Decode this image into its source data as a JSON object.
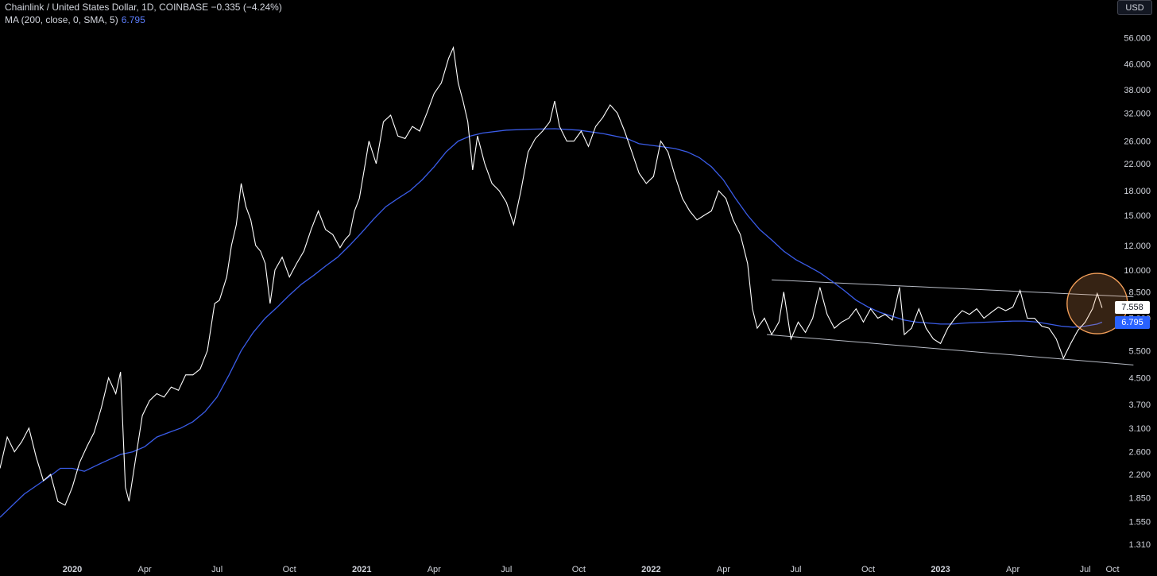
{
  "legend": {
    "line1": "Chainlink / United States Dollar, 1D, COINBASE  −0.335 (−4.24%)",
    "line2_label": "MA (200, close, 0, SMA, 5)",
    "line2_value": "6.795"
  },
  "currency_button": "USD",
  "price_tag": "7.558",
  "ma_tag": "6.795",
  "colors": {
    "price": "#ffffff",
    "ma": "#3a5ce8",
    "channel": "#b8bcc6",
    "highlight": "#f5a05a",
    "background": "#000000"
  },
  "chart_data": {
    "type": "line",
    "yscale": "log",
    "ylim": [
      1.2,
      62
    ],
    "xlim": [
      0,
      46
    ],
    "ytick_labels": [
      "56.000",
      "46.000",
      "38.000",
      "32.000",
      "26.000",
      "22.000",
      "18.000",
      "15.000",
      "12.000",
      "10.000",
      "8.500",
      "7.000",
      "5.500",
      "4.500",
      "3.700",
      "3.100",
      "2.600",
      "2.200",
      "1.850",
      "1.550",
      "1.310"
    ],
    "xticks": [
      {
        "label": "2020",
        "x": 3,
        "year": true
      },
      {
        "label": "Apr",
        "x": 6,
        "year": false
      },
      {
        "label": "Jul",
        "x": 9,
        "year": false
      },
      {
        "label": "Oct",
        "x": 12,
        "year": false
      },
      {
        "label": "2021",
        "x": 15,
        "year": true
      },
      {
        "label": "Apr",
        "x": 18,
        "year": false
      },
      {
        "label": "Jul",
        "x": 21,
        "year": false
      },
      {
        "label": "Oct",
        "x": 24,
        "year": false
      },
      {
        "label": "2022",
        "x": 27,
        "year": true
      },
      {
        "label": "Apr",
        "x": 30,
        "year": false
      },
      {
        "label": "Jul",
        "x": 33,
        "year": false
      },
      {
        "label": "Oct",
        "x": 36,
        "year": false
      },
      {
        "label": "2023",
        "x": 39,
        "year": true
      },
      {
        "label": "Apr",
        "x": 42,
        "year": false
      },
      {
        "label": "Jul",
        "x": 45,
        "year": false
      },
      {
        "label": "Oct",
        "x": 48,
        "year": false
      }
    ],
    "series": [
      {
        "name": "Chainlink / United States Dollar",
        "points": [
          [
            0.0,
            2.3
          ],
          [
            0.3,
            2.9
          ],
          [
            0.6,
            2.6
          ],
          [
            0.9,
            2.8
          ],
          [
            1.2,
            3.1
          ],
          [
            1.5,
            2.5
          ],
          [
            1.8,
            2.1
          ],
          [
            2.1,
            2.2
          ],
          [
            2.4,
            1.8
          ],
          [
            2.7,
            1.75
          ],
          [
            3.0,
            2.0
          ],
          [
            3.3,
            2.4
          ],
          [
            3.6,
            2.7
          ],
          [
            3.9,
            3.0
          ],
          [
            4.2,
            3.6
          ],
          [
            4.5,
            4.5
          ],
          [
            4.8,
            4.0
          ],
          [
            5.0,
            4.7
          ],
          [
            5.2,
            2.0
          ],
          [
            5.35,
            1.8
          ],
          [
            5.6,
            2.4
          ],
          [
            5.9,
            3.4
          ],
          [
            6.2,
            3.8
          ],
          [
            6.5,
            4.0
          ],
          [
            6.8,
            3.9
          ],
          [
            7.1,
            4.2
          ],
          [
            7.4,
            4.1
          ],
          [
            7.7,
            4.6
          ],
          [
            8.0,
            4.6
          ],
          [
            8.3,
            4.8
          ],
          [
            8.6,
            5.5
          ],
          [
            8.9,
            7.8
          ],
          [
            9.1,
            8.0
          ],
          [
            9.4,
            9.5
          ],
          [
            9.6,
            12.0
          ],
          [
            9.8,
            14.0
          ],
          [
            10.0,
            19.0
          ],
          [
            10.2,
            16.0
          ],
          [
            10.4,
            14.5
          ],
          [
            10.6,
            12.0
          ],
          [
            10.8,
            11.5
          ],
          [
            11.0,
            10.5
          ],
          [
            11.2,
            7.8
          ],
          [
            11.4,
            10.0
          ],
          [
            11.7,
            11.0
          ],
          [
            12.0,
            9.5
          ],
          [
            12.3,
            10.5
          ],
          [
            12.6,
            11.5
          ],
          [
            12.9,
            13.5
          ],
          [
            13.2,
            15.5
          ],
          [
            13.5,
            13.5
          ],
          [
            13.8,
            13.0
          ],
          [
            14.1,
            11.8
          ],
          [
            14.3,
            12.5
          ],
          [
            14.5,
            13.0
          ],
          [
            14.7,
            15.5
          ],
          [
            14.9,
            17.0
          ],
          [
            15.1,
            21.0
          ],
          [
            15.3,
            26.0
          ],
          [
            15.6,
            22.0
          ],
          [
            15.9,
            30.0
          ],
          [
            16.2,
            31.5
          ],
          [
            16.5,
            27.0
          ],
          [
            16.8,
            26.5
          ],
          [
            17.1,
            29.0
          ],
          [
            17.4,
            28.0
          ],
          [
            17.7,
            32.0
          ],
          [
            18.0,
            37.0
          ],
          [
            18.3,
            40.0
          ],
          [
            18.6,
            48.0
          ],
          [
            18.8,
            52.0
          ],
          [
            19.0,
            40.0
          ],
          [
            19.2,
            35.0
          ],
          [
            19.4,
            30.0
          ],
          [
            19.5,
            25.0
          ],
          [
            19.6,
            21.0
          ],
          [
            19.8,
            27.0
          ],
          [
            20.1,
            22.0
          ],
          [
            20.4,
            19.0
          ],
          [
            20.7,
            18.0
          ],
          [
            21.0,
            16.5
          ],
          [
            21.3,
            14.0
          ],
          [
            21.6,
            18.0
          ],
          [
            21.9,
            24.0
          ],
          [
            22.2,
            26.5
          ],
          [
            22.5,
            28.0
          ],
          [
            22.8,
            30.0
          ],
          [
            23.0,
            35.0
          ],
          [
            23.2,
            29.0
          ],
          [
            23.5,
            26.0
          ],
          [
            23.8,
            26.0
          ],
          [
            24.1,
            28.0
          ],
          [
            24.4,
            25.0
          ],
          [
            24.7,
            29.0
          ],
          [
            25.0,
            31.0
          ],
          [
            25.3,
            34.0
          ],
          [
            25.6,
            32.0
          ],
          [
            25.9,
            28.0
          ],
          [
            26.2,
            24.0
          ],
          [
            26.5,
            20.5
          ],
          [
            26.8,
            19.0
          ],
          [
            27.1,
            20.0
          ],
          [
            27.4,
            26.0
          ],
          [
            27.7,
            24.0
          ],
          [
            28.0,
            20.0
          ],
          [
            28.3,
            17.0
          ],
          [
            28.6,
            15.5
          ],
          [
            28.9,
            14.5
          ],
          [
            29.2,
            15.0
          ],
          [
            29.5,
            15.5
          ],
          [
            29.8,
            18.0
          ],
          [
            30.1,
            17.0
          ],
          [
            30.4,
            14.5
          ],
          [
            30.7,
            13.0
          ],
          [
            31.0,
            10.5
          ],
          [
            31.2,
            7.5
          ],
          [
            31.4,
            6.5
          ],
          [
            31.7,
            7.0
          ],
          [
            32.0,
            6.2
          ],
          [
            32.3,
            6.8
          ],
          [
            32.5,
            8.5
          ],
          [
            32.8,
            6.0
          ],
          [
            33.1,
            6.8
          ],
          [
            33.4,
            6.3
          ],
          [
            33.7,
            7.0
          ],
          [
            34.0,
            8.8
          ],
          [
            34.3,
            7.2
          ],
          [
            34.6,
            6.5
          ],
          [
            34.9,
            6.8
          ],
          [
            35.2,
            7.0
          ],
          [
            35.5,
            7.5
          ],
          [
            35.8,
            6.8
          ],
          [
            36.1,
            7.5
          ],
          [
            36.4,
            7.0
          ],
          [
            36.7,
            7.2
          ],
          [
            37.0,
            6.9
          ],
          [
            37.3,
            8.8
          ],
          [
            37.5,
            6.2
          ],
          [
            37.8,
            6.5
          ],
          [
            38.1,
            7.5
          ],
          [
            38.4,
            6.5
          ],
          [
            38.7,
            6.0
          ],
          [
            39.0,
            5.8
          ],
          [
            39.3,
            6.5
          ],
          [
            39.6,
            7.0
          ],
          [
            39.9,
            7.4
          ],
          [
            40.2,
            7.2
          ],
          [
            40.5,
            7.5
          ],
          [
            40.8,
            7.0
          ],
          [
            41.1,
            7.3
          ],
          [
            41.4,
            7.6
          ],
          [
            41.7,
            7.4
          ],
          [
            42.0,
            7.6
          ],
          [
            42.3,
            8.6
          ],
          [
            42.6,
            7.0
          ],
          [
            42.9,
            7.0
          ],
          [
            43.2,
            6.6
          ],
          [
            43.5,
            6.5
          ],
          [
            43.8,
            6.0
          ],
          [
            44.1,
            5.2
          ],
          [
            44.4,
            5.8
          ],
          [
            44.7,
            6.4
          ],
          [
            45.0,
            6.8
          ],
          [
            45.3,
            7.5
          ],
          [
            45.5,
            8.4
          ],
          [
            45.7,
            7.558
          ]
        ]
      },
      {
        "name": "MA (200, close, 0, SMA, 5)",
        "points": [
          [
            0.0,
            1.6
          ],
          [
            1.0,
            1.9
          ],
          [
            2.0,
            2.15
          ],
          [
            2.5,
            2.3
          ],
          [
            3.0,
            2.3
          ],
          [
            3.5,
            2.25
          ],
          [
            4.0,
            2.35
          ],
          [
            4.5,
            2.45
          ],
          [
            5.0,
            2.55
          ],
          [
            5.5,
            2.6
          ],
          [
            6.0,
            2.7
          ],
          [
            6.5,
            2.9
          ],
          [
            7.0,
            3.0
          ],
          [
            7.5,
            3.1
          ],
          [
            8.0,
            3.25
          ],
          [
            8.5,
            3.5
          ],
          [
            9.0,
            3.9
          ],
          [
            9.5,
            4.6
          ],
          [
            10.0,
            5.5
          ],
          [
            10.5,
            6.3
          ],
          [
            11.0,
            7.0
          ],
          [
            11.5,
            7.6
          ],
          [
            12.0,
            8.3
          ],
          [
            12.5,
            9.0
          ],
          [
            13.0,
            9.6
          ],
          [
            13.5,
            10.3
          ],
          [
            14.0,
            11.0
          ],
          [
            14.5,
            12.0
          ],
          [
            15.0,
            13.2
          ],
          [
            15.5,
            14.6
          ],
          [
            16.0,
            16.0
          ],
          [
            16.5,
            17.0
          ],
          [
            17.0,
            18.0
          ],
          [
            17.5,
            19.5
          ],
          [
            18.0,
            21.5
          ],
          [
            18.5,
            24.0
          ],
          [
            19.0,
            26.0
          ],
          [
            19.5,
            27.0
          ],
          [
            20.0,
            27.6
          ],
          [
            21.0,
            28.2
          ],
          [
            22.0,
            28.4
          ],
          [
            23.0,
            28.5
          ],
          [
            24.0,
            28.2
          ],
          [
            25.0,
            27.5
          ],
          [
            26.0,
            26.5
          ],
          [
            26.5,
            25.5
          ],
          [
            27.0,
            25.2
          ],
          [
            27.5,
            24.9
          ],
          [
            28.0,
            24.6
          ],
          [
            28.5,
            24.0
          ],
          [
            29.0,
            23.0
          ],
          [
            29.5,
            21.5
          ],
          [
            30.0,
            19.5
          ],
          [
            30.5,
            17.0
          ],
          [
            31.0,
            15.0
          ],
          [
            31.5,
            13.5
          ],
          [
            32.0,
            12.5
          ],
          [
            32.5,
            11.5
          ],
          [
            33.0,
            10.8
          ],
          [
            33.5,
            10.3
          ],
          [
            34.0,
            9.8
          ],
          [
            34.5,
            9.2
          ],
          [
            35.0,
            8.6
          ],
          [
            35.5,
            8.0
          ],
          [
            36.0,
            7.6
          ],
          [
            36.5,
            7.3
          ],
          [
            37.0,
            7.1
          ],
          [
            37.5,
            6.9
          ],
          [
            38.0,
            6.8
          ],
          [
            38.5,
            6.75
          ],
          [
            39.0,
            6.7
          ],
          [
            39.5,
            6.7
          ],
          [
            40.0,
            6.75
          ],
          [
            41.0,
            6.8
          ],
          [
            42.0,
            6.85
          ],
          [
            42.5,
            6.85
          ],
          [
            43.0,
            6.8
          ],
          [
            43.5,
            6.7
          ],
          [
            44.0,
            6.6
          ],
          [
            44.5,
            6.55
          ],
          [
            45.0,
            6.6
          ],
          [
            45.5,
            6.7
          ],
          [
            45.7,
            6.795
          ]
        ]
      }
    ],
    "channel": {
      "upper": [
        [
          32.0,
          9.3
        ],
        [
          47.0,
          8.2
        ]
      ],
      "lower": [
        [
          31.8,
          6.2
        ],
        [
          47.0,
          4.95
        ]
      ]
    },
    "highlight_circle": {
      "x": 45.5,
      "y": 7.8
    }
  }
}
